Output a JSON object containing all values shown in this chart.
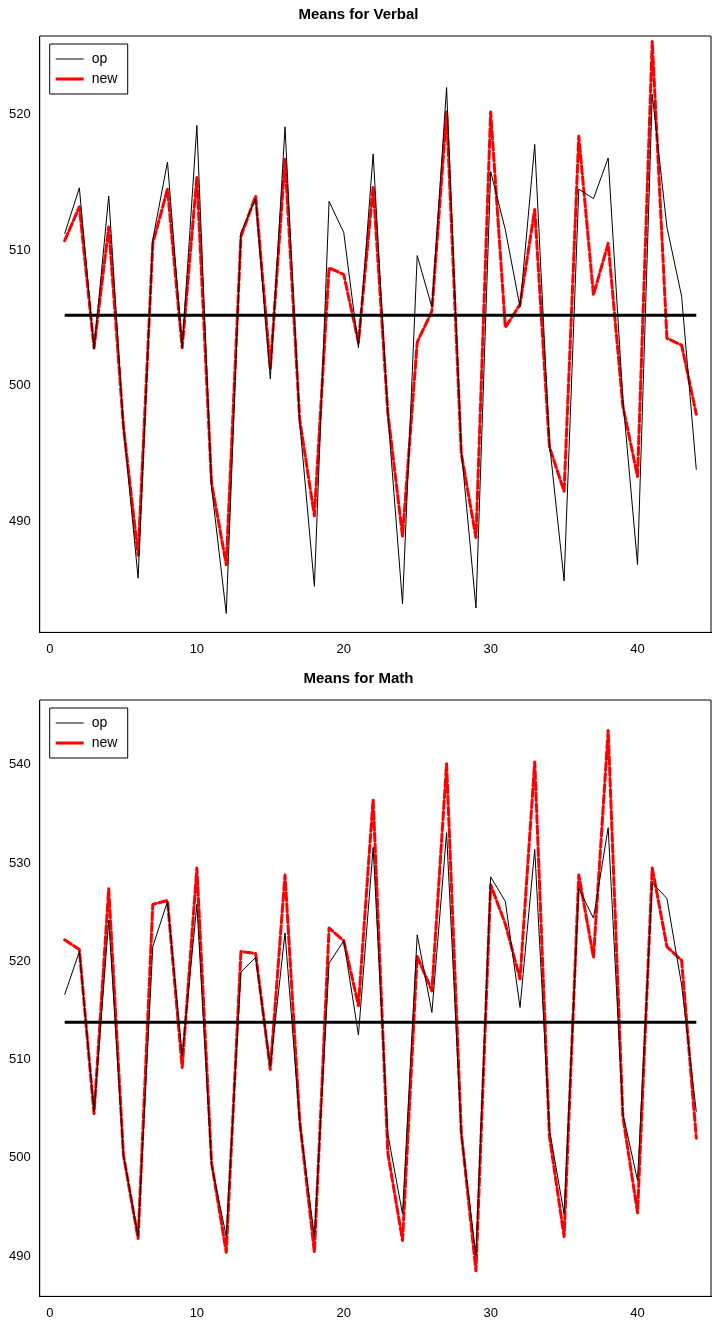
{
  "chart_data": [
    {
      "type": "line",
      "title": "Means for Verbal",
      "x": [
        1,
        2,
        3,
        4,
        5,
        6,
        7,
        8,
        9,
        10,
        11,
        12,
        13,
        14,
        15,
        16,
        17,
        18,
        19,
        20,
        21,
        22,
        23,
        24,
        25,
        26,
        27,
        28,
        29,
        30,
        31,
        32,
        33,
        34,
        35,
        36,
        37,
        38,
        39,
        40,
        41,
        42,
        43,
        44
      ],
      "series": [
        {
          "name": "op",
          "color": "#000000",
          "line_style": "solid",
          "values": [
            511.2,
            514.6,
            502.7,
            514.0,
            497.0,
            485.8,
            510.8,
            516.5,
            502.8,
            519.2,
            492.5,
            483.2,
            511.3,
            513.8,
            500.5,
            519.1,
            497.3,
            485.2,
            513.6,
            511.3,
            502.8,
            517.1,
            497.9,
            483.9,
            509.6,
            505.8,
            522.0,
            495.3,
            483.6,
            515.8,
            511.5,
            505.8,
            517.8,
            495.8,
            485.6,
            514.5,
            513.8,
            516.8,
            499.0,
            486.8,
            521.5,
            511.7,
            506.6,
            493.8
          ]
        },
        {
          "name": "new",
          "color": "#ff0000",
          "line_style": "dashed",
          "values": [
            510.7,
            513.2,
            502.8,
            511.7,
            497.0,
            487.5,
            510.5,
            514.5,
            502.8,
            515.4,
            492.8,
            486.8,
            511.0,
            514.0,
            501.3,
            516.7,
            497.5,
            490.4,
            508.7,
            508.2,
            503.2,
            514.7,
            498.0,
            488.9,
            503.2,
            505.5,
            520.2,
            495.0,
            488.8,
            520.2,
            504.3,
            506.0,
            513.0,
            495.5,
            492.2,
            518.4,
            506.7,
            510.5,
            498.5,
            493.3,
            525.4,
            503.5,
            503.0,
            497.9
          ]
        }
      ],
      "ref_lines": [
        {
          "axis": "y",
          "value": 505.2,
          "color": "#000000"
        }
      ],
      "xlim": [
        -0.7,
        45
      ],
      "ylim": [
        481.8,
        525.8
      ],
      "xticks": [
        0,
        10,
        20,
        30,
        40
      ],
      "yticks": [
        490,
        500,
        510,
        520
      ],
      "grid": false,
      "legend": "top left"
    },
    {
      "type": "line",
      "title": "Means for Math",
      "x": [
        1,
        2,
        3,
        4,
        5,
        6,
        7,
        8,
        9,
        10,
        11,
        12,
        13,
        14,
        15,
        16,
        17,
        18,
        19,
        20,
        21,
        22,
        23,
        24,
        25,
        26,
        27,
        28,
        29,
        30,
        31,
        32,
        33,
        34,
        35,
        36,
        37,
        38,
        39,
        40,
        41,
        42,
        43,
        44
      ],
      "series": [
        {
          "name": "op",
          "color": "#000000",
          "line_style": "solid",
          "values": [
            516.6,
            521.0,
            504.7,
            524.2,
            500.3,
            492.0,
            521.5,
            526.1,
            510.4,
            525.8,
            499.3,
            492.0,
            518.9,
            520.4,
            509.3,
            522.9,
            503.6,
            492.0,
            519.8,
            522.1,
            512.5,
            531.6,
            502.4,
            494.3,
            522.7,
            514.8,
            533.1,
            502.4,
            490.1,
            528.6,
            526.1,
            515.3,
            531.4,
            502.9,
            494.3,
            527.4,
            524.4,
            533.6,
            504.5,
            497.7,
            528.0,
            526.4,
            517.6,
            504.7
          ]
        },
        {
          "name": "new",
          "color": "#ff0000",
          "line_style": "dashed",
          "values": [
            522.2,
            521.2,
            504.5,
            527.4,
            500.3,
            491.8,
            525.8,
            526.2,
            509.2,
            529.5,
            499.5,
            490.4,
            521.0,
            520.8,
            509.0,
            528.8,
            503.8,
            490.4,
            523.4,
            522.1,
            515.5,
            536.5,
            500.5,
            491.6,
            520.5,
            517.0,
            540.1,
            502.6,
            488.5,
            527.8,
            523.8,
            518.2,
            540.3,
            502.2,
            492.0,
            528.8,
            520.4,
            543.5,
            504.2,
            494.4,
            529.5,
            521.5,
            520.1,
            502.0
          ]
        }
      ],
      "ref_lines": [
        {
          "axis": "y",
          "value": 513.8,
          "color": "#000000"
        }
      ],
      "xlim": [
        -0.7,
        45
      ],
      "ylim": [
        485.9,
        546.6
      ],
      "xticks": [
        0,
        10,
        20,
        30,
        40
      ],
      "yticks": [
        490,
        500,
        510,
        520,
        530,
        540
      ],
      "grid": false,
      "legend": "top left"
    }
  ]
}
